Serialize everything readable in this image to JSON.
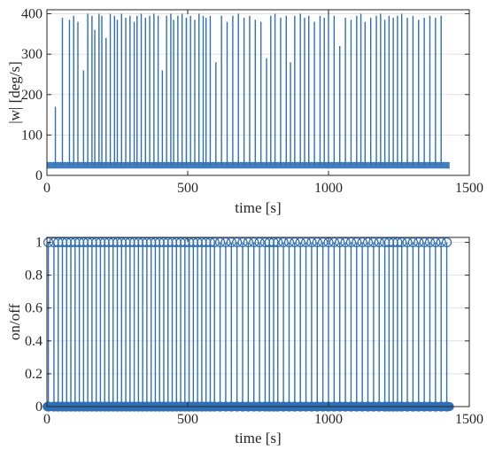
{
  "chart_data": [
    {
      "type": "line",
      "xlabel": "time [s]",
      "ylabel": "|w| [deg/s]",
      "xlim": [
        0,
        1500
      ],
      "ylim": [
        0,
        410
      ],
      "xticks": [
        0,
        500,
        1000,
        1500
      ],
      "yticks": [
        0,
        100,
        200,
        300,
        400
      ],
      "grid": true,
      "color": "#2e6fb5",
      "baseline_level": 25,
      "baseline_x_range": [
        0,
        1430
      ],
      "series": [
        {
          "x": [
            30,
            55,
            80,
            95,
            110,
            130,
            145,
            160,
            170,
            185,
            195,
            210,
            225,
            240,
            250,
            265,
            280,
            295,
            310,
            320,
            335,
            350,
            365,
            380,
            395,
            410,
            425,
            440,
            450,
            465,
            480,
            495,
            510,
            525,
            540,
            555,
            565,
            580,
            600,
            620,
            640,
            660,
            680,
            700,
            720,
            740,
            760,
            780,
            795,
            810,
            830,
            850,
            865,
            880,
            900,
            915,
            930,
            950,
            970,
            985,
            1000,
            1020,
            1040,
            1060,
            1080,
            1100,
            1115,
            1130,
            1150,
            1170,
            1185,
            1200,
            1215,
            1230,
            1245,
            1260,
            1280,
            1300,
            1320,
            1340,
            1360,
            1380,
            1400
          ],
          "y": [
            170,
            390,
            385,
            395,
            380,
            260,
            400,
            395,
            360,
            400,
            395,
            340,
            400,
            395,
            385,
            400,
            390,
            395,
            380,
            395,
            400,
            390,
            395,
            400,
            395,
            260,
            395,
            400,
            385,
            395,
            400,
            390,
            395,
            385,
            400,
            395,
            390,
            395,
            280,
            395,
            380,
            395,
            400,
            390,
            395,
            385,
            380,
            290,
            395,
            400,
            390,
            395,
            280,
            395,
            400,
            390,
            395,
            380,
            395,
            390,
            400,
            395,
            320,
            390,
            385,
            395,
            400,
            380,
            390,
            395,
            400,
            385,
            395,
            390,
            395,
            400,
            390,
            395,
            385,
            390,
            395,
            390,
            395
          ]
        }
      ]
    },
    {
      "type": "stem",
      "xlabel": "time [s]",
      "ylabel": "on/off",
      "xlim": [
        0,
        1500
      ],
      "ylim": [
        0,
        1.03
      ],
      "xticks": [
        0,
        500,
        1000,
        1500
      ],
      "yticks": [
        0,
        0.2,
        0.4,
        0.6,
        0.8,
        1
      ],
      "grid": true,
      "color": "#2e6fb5",
      "series": [
        {
          "x": [
            5,
            25,
            40,
            55,
            70,
            85,
            100,
            115,
            130,
            145,
            160,
            175,
            190,
            205,
            220,
            235,
            250,
            265,
            280,
            295,
            310,
            325,
            340,
            355,
            370,
            385,
            400,
            415,
            430,
            445,
            460,
            475,
            490,
            505,
            520,
            535,
            550,
            565,
            580,
            595,
            615,
            635,
            655,
            675,
            695,
            715,
            735,
            755,
            775,
            790,
            805,
            820,
            840,
            860,
            880,
            900,
            920,
            940,
            960,
            980,
            1000,
            1020,
            1040,
            1060,
            1080,
            1100,
            1120,
            1140,
            1160,
            1180,
            1200,
            1215,
            1230,
            1245,
            1260,
            1280,
            1300,
            1320,
            1340,
            1360,
            1380,
            1400,
            1420
          ],
          "y_on": 1,
          "y_off": 0
        }
      ]
    }
  ]
}
